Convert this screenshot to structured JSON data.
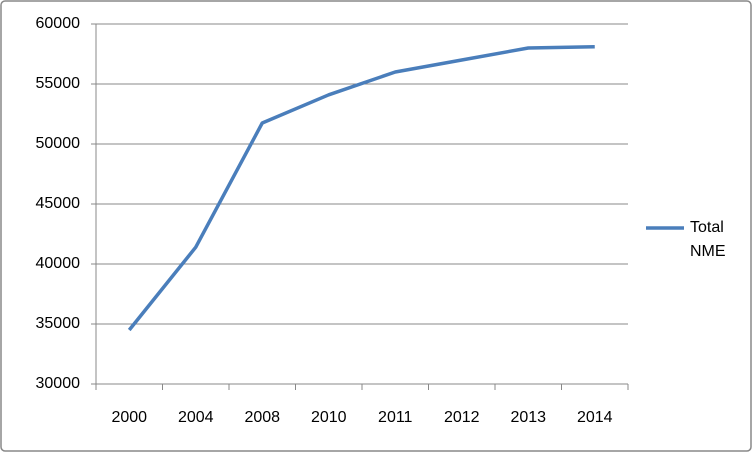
{
  "chart_data": {
    "type": "line",
    "categories": [
      "2000",
      "2004",
      "2008",
      "2010",
      "2011",
      "2012",
      "2013",
      "2014"
    ],
    "series": [
      {
        "name": "Total NME",
        "color": "#4a7ebb",
        "values": [
          34500,
          41400,
          51750,
          54100,
          56000,
          57000,
          58000,
          58100
        ]
      }
    ],
    "ylim": [
      30000,
      60000
    ],
    "yticks": [
      30000,
      35000,
      40000,
      45000,
      50000,
      55000,
      60000
    ],
    "grid": true,
    "legend": "right"
  }
}
